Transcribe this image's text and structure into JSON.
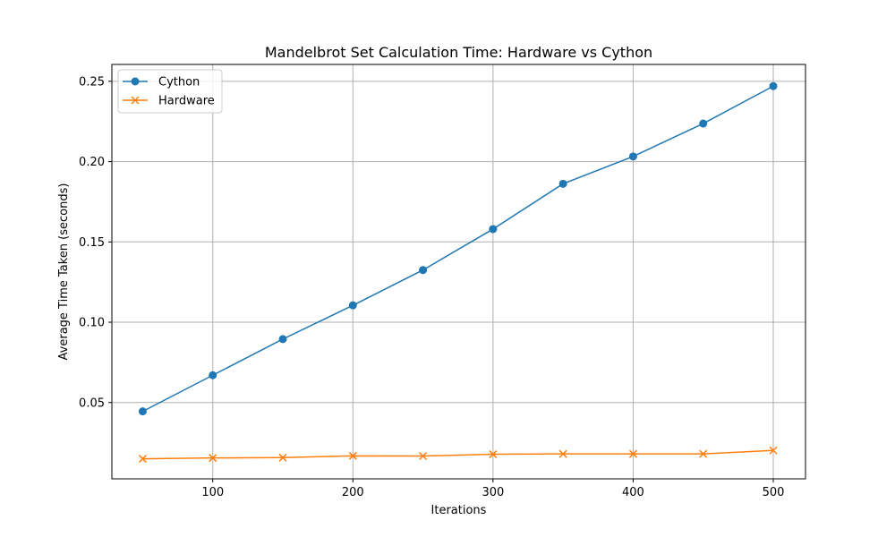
{
  "chart_data": {
    "type": "line",
    "title": "Mandelbrot Set Calculation Time: Hardware vs Cython",
    "xlabel": "Iterations",
    "ylabel": "Average Time Taken (seconds)",
    "x": [
      50,
      100,
      150,
      200,
      250,
      300,
      350,
      400,
      450,
      500
    ],
    "xlim": [
      28,
      523
    ],
    "ylim": [
      0.0025,
      0.2605
    ],
    "x_ticks": [
      100,
      200,
      300,
      400,
      500
    ],
    "y_ticks": [
      0.05,
      0.1,
      0.15,
      0.2,
      0.25
    ],
    "x_tick_labels": [
      "100",
      "200",
      "300",
      "400",
      "500"
    ],
    "y_tick_labels": [
      "0.05",
      "0.10",
      "0.15",
      "0.20",
      "0.25"
    ],
    "grid": true,
    "legend_position": "top-left",
    "series": [
      {
        "name": "Cython",
        "color": "#1f77b4",
        "marker": "circle",
        "values": [
          0.0445,
          0.067,
          0.0895,
          0.1105,
          0.1325,
          0.158,
          0.1862,
          0.2032,
          0.2237,
          0.247
        ]
      },
      {
        "name": "Hardware",
        "color": "#ff7f0e",
        "marker": "x",
        "values": [
          0.015,
          0.0155,
          0.0157,
          0.0168,
          0.0167,
          0.0178,
          0.018,
          0.018,
          0.018,
          0.0202
        ]
      }
    ]
  }
}
